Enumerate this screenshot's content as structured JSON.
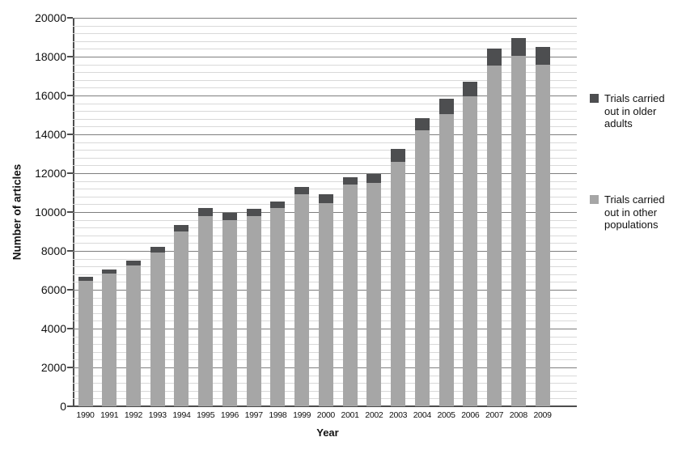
{
  "chart_data": {
    "type": "bar",
    "stacked": true,
    "title": "",
    "xlabel": "Year",
    "ylabel": "Number of articles",
    "categories": [
      "1990",
      "1991",
      "1992",
      "1993",
      "1994",
      "1995",
      "1996",
      "1997",
      "1998",
      "1999",
      "2000",
      "2001",
      "2002",
      "2003",
      "2004",
      "2005",
      "2006",
      "2007",
      "2008",
      "2009"
    ],
    "series": [
      {
        "name": "Trials carried out in other populations",
        "color": "#a6a6a6",
        "values": [
          6450,
          6850,
          7250,
          7900,
          9000,
          9800,
          9600,
          9800,
          10200,
          10900,
          10450,
          11400,
          11500,
          12600,
          14200,
          15050,
          15950,
          17550,
          18050,
          17600
        ]
      },
      {
        "name": "Trials carried out in older adults",
        "color": "#4d4e50",
        "values": [
          200,
          200,
          250,
          300,
          350,
          400,
          350,
          350,
          350,
          400,
          450,
          400,
          450,
          650,
          650,
          800,
          750,
          850,
          900,
          900
        ]
      }
    ],
    "totals": [
      6650,
      7050,
      7500,
      8200,
      9350,
      10200,
      9950,
      10150,
      10550,
      11300,
      10900,
      11800,
      11950,
      13250,
      14850,
      15850,
      16700,
      18400,
      18950,
      18500
    ],
    "ylim": [
      0,
      20000
    ],
    "y_major_step": 2000,
    "y_minor_step": 400,
    "grid": "horizontal, minor every 400 (light), major every 2000 (dark)",
    "legend_position": "right",
    "legend": [
      {
        "label": "Trials carried out in older adults",
        "color": "#4d4e50"
      },
      {
        "label": "Trials carried out in other populations",
        "color": "#a6a6a6"
      }
    ]
  },
  "colors": {
    "background": "#ffffff",
    "bar_light": "#a6a6a6",
    "bar_dark": "#4d4e50",
    "gridline_minor": "#d9d9d9",
    "gridline_major": "#7e7e7e",
    "axis": "#4d4d4d",
    "text": "#111111"
  }
}
